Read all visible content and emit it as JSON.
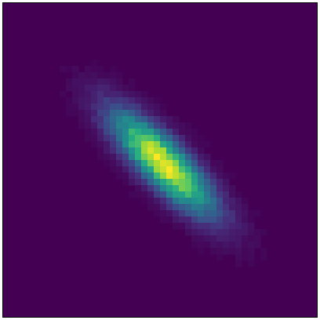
{
  "chart_data": {
    "type": "heatmap",
    "title": "",
    "xlabel": "",
    "ylabel": "",
    "colormap": "viridis",
    "grid": false,
    "axes_visible": false,
    "bins": [
      50,
      50
    ],
    "distribution": {
      "kind": "2d-gaussian",
      "mean": [
        25.5,
        25.5
      ],
      "major_axis_angle_deg": 45,
      "sigma_major_bins": 7.3,
      "sigma_minor_bins": 2.3,
      "peak_cell": [
        25,
        25
      ]
    },
    "colors": {
      "low": "#440154",
      "mid": "#21918c",
      "high": "#fde725"
    }
  }
}
